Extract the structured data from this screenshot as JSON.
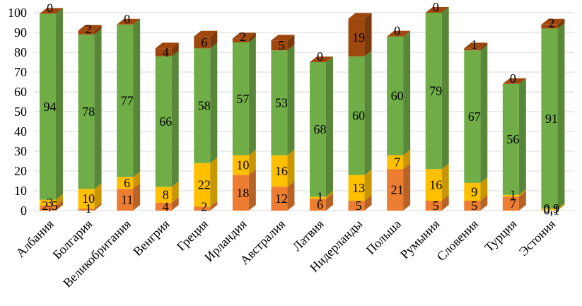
{
  "chart_data": {
    "type": "bar",
    "stacked": true,
    "style": "3d-column",
    "grid": true,
    "legend": "none",
    "ylim": [
      0,
      100
    ],
    "yticks": [
      "0",
      "10",
      "20",
      "30",
      "40",
      "50",
      "60",
      "70",
      "80",
      "90",
      "100"
    ],
    "categories": [
      "Албания",
      "Болгария",
      "Великобритания",
      "Венгрия",
      "Греция",
      "Ирландия",
      "Австралия",
      "Латвия",
      "Нидерланды",
      "Польша",
      "Румыния",
      "Словения",
      "Турция",
      "Эстония"
    ],
    "series": [
      {
        "color": "#ed7d31",
        "values": [
          2.5,
          1,
          11,
          4,
          2,
          18,
          12,
          6,
          5,
          21,
          5,
          5,
          7,
          0.1
        ],
        "labels": [
          "2,5",
          "1",
          "11",
          "4",
          "2",
          "18",
          "12",
          "6",
          "5",
          "21",
          "5",
          "5",
          "7",
          "0,1"
        ]
      },
      {
        "color": "#ffc000",
        "values": [
          3,
          10,
          6,
          8,
          22,
          10,
          16,
          1,
          13,
          7,
          16,
          9,
          1,
          0.9
        ],
        "labels": [
          "3",
          "10",
          "6",
          "8",
          "22",
          "10",
          "16",
          "1",
          "13",
          "7",
          "16",
          "9",
          "1",
          "0,9"
        ]
      },
      {
        "color": "#70ad47",
        "values": [
          94,
          78,
          77,
          66,
          58,
          57,
          53,
          68,
          60,
          60,
          79,
          67,
          56,
          91
        ],
        "labels": [
          "94",
          "78",
          "77",
          "66",
          "58",
          "57",
          "53",
          "68",
          "60",
          "60",
          "79",
          "67",
          "56",
          "91"
        ]
      },
      {
        "color": "#9e480e",
        "values": [
          0,
          2,
          0,
          4,
          6,
          2,
          5,
          0,
          19,
          0,
          0,
          1,
          0,
          2
        ],
        "labels": [
          "0",
          "2",
          "0",
          "4",
          "6",
          "2",
          "5",
          "0",
          "19",
          "0",
          "0",
          "1",
          "0",
          "2"
        ]
      }
    ]
  }
}
